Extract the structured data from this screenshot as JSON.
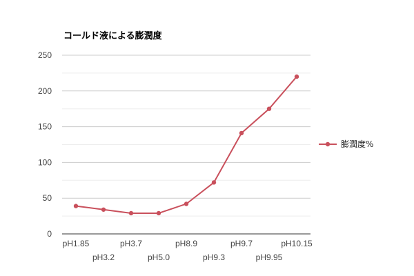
{
  "chart_data": {
    "type": "line",
    "title": "コールド液による膨潤度",
    "xlabel": "",
    "ylabel": "",
    "categories": [
      "pH1.85",
      "pH3.2",
      "pH3.7",
      "pH5.0",
      "pH8.9",
      "pH9.3",
      "pH9.7",
      "pH9.95",
      "pH10.15"
    ],
    "series": [
      {
        "name": "膨潤度%",
        "color": "#c9505c",
        "values": [
          39,
          34,
          29,
          29,
          42,
          72,
          141,
          175,
          220
        ]
      }
    ],
    "ylim": [
      0,
      250
    ],
    "yticks": [
      0,
      50,
      100,
      150,
      200,
      250
    ],
    "grid": true,
    "legend_position": "right"
  }
}
